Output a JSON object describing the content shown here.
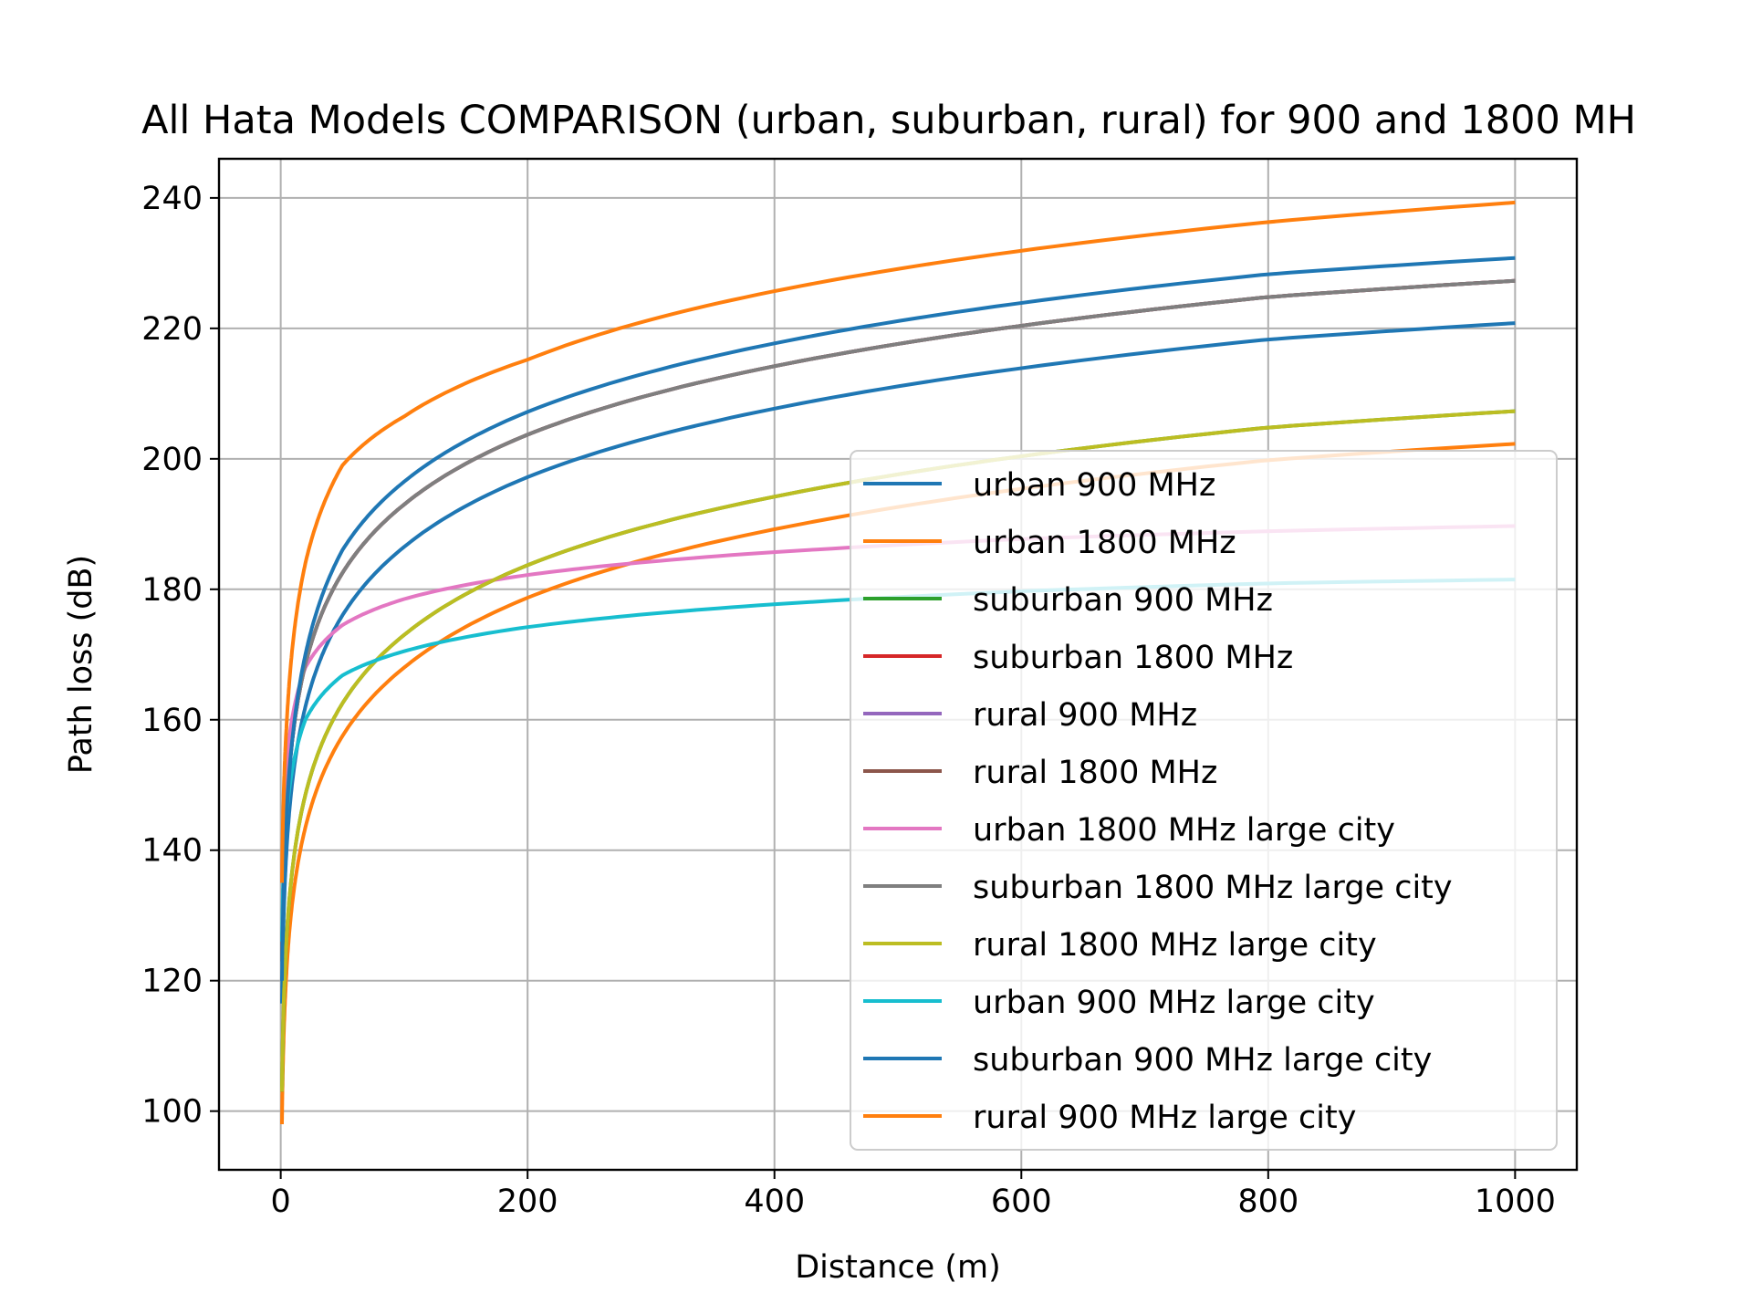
{
  "chart_data": {
    "type": "line",
    "title": "All Hata Models COMPARISON (urban, suburban, rural) for 900 and 1800 MH",
    "xlabel": "Distance (m)",
    "ylabel": "Path loss (dB)",
    "xlim": [
      -50,
      1050
    ],
    "ylim": [
      91,
      246
    ],
    "xticks": [
      0,
      200,
      400,
      600,
      800,
      1000
    ],
    "yticks": [
      100,
      120,
      140,
      160,
      180,
      200,
      220,
      240
    ],
    "grid": true,
    "legend_position": "lower-right",
    "series": [
      {
        "name": "urban 900 MHz",
        "color": "#1f77b4",
        "x": [
          1,
          5,
          20,
          50,
          100,
          200,
          400,
          600,
          800,
          1000
        ],
        "y": [
          116.5,
          140.8,
          162.0,
          176.0,
          186.5,
          197.2,
          207.7,
          213.9,
          218.3,
          220.8
        ]
      },
      {
        "name": "urban 1800 MHz",
        "color": "#ff7f0e",
        "x": [
          1,
          5,
          20,
          50,
          100,
          200,
          400,
          600,
          800,
          1000
        ],
        "y": [
          98.0,
          122.3,
          143.5,
          157.5,
          168.0,
          178.7,
          189.2,
          195.4,
          199.8,
          202.3
        ]
      },
      {
        "name": "suburban 900 MHz",
        "color": "#2ca02c",
        "x": [
          1,
          5,
          20,
          50,
          100,
          200,
          400,
          600,
          800,
          1000
        ],
        "y": [
          103.0,
          127.3,
          148.5,
          162.5,
          173.0,
          183.7,
          194.2,
          200.4,
          204.8,
          207.3
        ]
      },
      {
        "name": "suburban 1800 MHz",
        "color": "#d62728",
        "x": [
          1,
          5,
          20,
          50,
          100,
          200,
          400,
          600,
          800,
          1000
        ],
        "y": [
          123.0,
          147.3,
          168.5,
          182.5,
          193.0,
          203.7,
          214.2,
          220.4,
          224.8,
          227.3
        ]
      },
      {
        "name": "rural 900 MHz",
        "color": "#9467bd",
        "x": [
          1,
          5,
          20,
          50,
          100,
          200,
          400,
          600,
          800,
          1000
        ],
        "y": [
          123.0,
          147.3,
          168.5,
          182.5,
          193.0,
          203.7,
          214.2,
          220.4,
          224.8,
          227.3
        ]
      },
      {
        "name": "rural 1800 MHz",
        "color": "#8c564b",
        "x": [
          1,
          5,
          20,
          50,
          100,
          200,
          400,
          600,
          800,
          1000
        ],
        "y": [
          123.0,
          147.3,
          168.5,
          182.5,
          193.0,
          203.7,
          214.2,
          220.4,
          224.8,
          227.3
        ]
      },
      {
        "name": "urban 1800 MHz large city",
        "color": "#e377c2",
        "x": [
          1,
          5,
          20,
          50,
          100,
          200,
          400,
          600,
          800,
          1000
        ],
        "y": [
          135.0,
          154.0,
          168.0,
          174.5,
          178.5,
          182.2,
          185.7,
          187.7,
          188.9,
          189.7
        ]
      },
      {
        "name": "suburban 1800 MHz large city",
        "color": "#7f7f7f",
        "x": [
          1,
          5,
          20,
          50,
          100,
          200,
          400,
          600,
          800,
          1000
        ],
        "y": [
          123.0,
          147.3,
          168.5,
          182.5,
          193.0,
          203.7,
          214.2,
          220.4,
          224.8,
          227.3
        ]
      },
      {
        "name": "rural 1800 MHz large city",
        "color": "#bcbd22",
        "x": [
          1,
          5,
          20,
          50,
          100,
          200,
          400,
          600,
          800,
          1000
        ],
        "y": [
          103.0,
          127.3,
          148.5,
          162.5,
          173.0,
          183.7,
          194.2,
          200.4,
          204.8,
          207.3
        ]
      },
      {
        "name": "urban 900 MHz large city",
        "color": "#17becf",
        "x": [
          1,
          5,
          20,
          50,
          100,
          200,
          400,
          600,
          800,
          1000
        ],
        "y": [
          126.0,
          146.0,
          160.0,
          166.8,
          170.5,
          174.2,
          177.7,
          179.7,
          180.9,
          181.5
        ]
      },
      {
        "name": "suburban 900 MHz large city",
        "color": "#1f77b4",
        "x": [
          1,
          5,
          20,
          50,
          100,
          200,
          400,
          600,
          800,
          1000
        ],
        "y": [
          120.0,
          146.0,
          170.0,
          186.0,
          196.5,
          207.2,
          217.7,
          223.9,
          228.3,
          230.8
        ]
      },
      {
        "name": "rural 900 MHz large city",
        "color": "#ff7f0e",
        "x": [
          1,
          5,
          20,
          50,
          100,
          200,
          400,
          600,
          800,
          1000
        ],
        "y": [
          135.0,
          160.0,
          184.0,
          199.0,
          206.5,
          215.2,
          225.7,
          231.9,
          236.3,
          239.3
        ]
      }
    ]
  }
}
